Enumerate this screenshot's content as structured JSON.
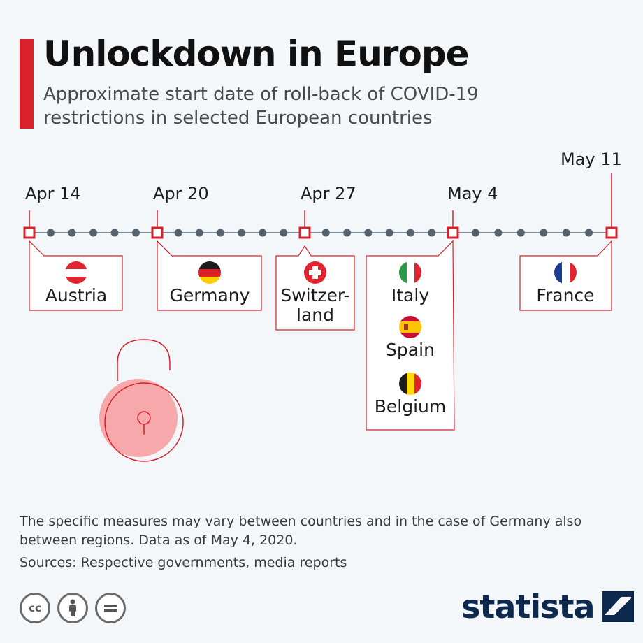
{
  "header": {
    "title": "Unlockdown in Europe",
    "subtitle": "Approximate start date of roll-back of COVID-19 restrictions in selected European countries"
  },
  "chart_data": {
    "type": "timeline",
    "dates": [
      "Apr 14",
      "Apr 20",
      "Apr 27",
      "May 4",
      "May 11"
    ],
    "events": [
      {
        "date": "Apr 14",
        "countries": [
          "Austria"
        ]
      },
      {
        "date": "Apr 20",
        "countries": [
          "Germany"
        ]
      },
      {
        "date": "Apr 27",
        "countries": [
          "Switzer-land"
        ]
      },
      {
        "date": "May 4",
        "countries": [
          "Italy",
          "Spain",
          "Belgium"
        ]
      },
      {
        "date": "May 11",
        "countries": [
          "France"
        ]
      }
    ]
  },
  "footer": {
    "note": "The specific measures may vary between countries and in the case of Germany also between regions. Data as of May 4, 2020.",
    "sources": "Sources: Respective governments, media reports",
    "brand": "statista",
    "license_icons": [
      "cc-icon",
      "attribution-icon",
      "no-derivatives-icon"
    ]
  },
  "colors": {
    "accent": "#d8212a",
    "axis": "#556270",
    "brand": "#0d2a4e",
    "lock": "#f7a8ab"
  }
}
